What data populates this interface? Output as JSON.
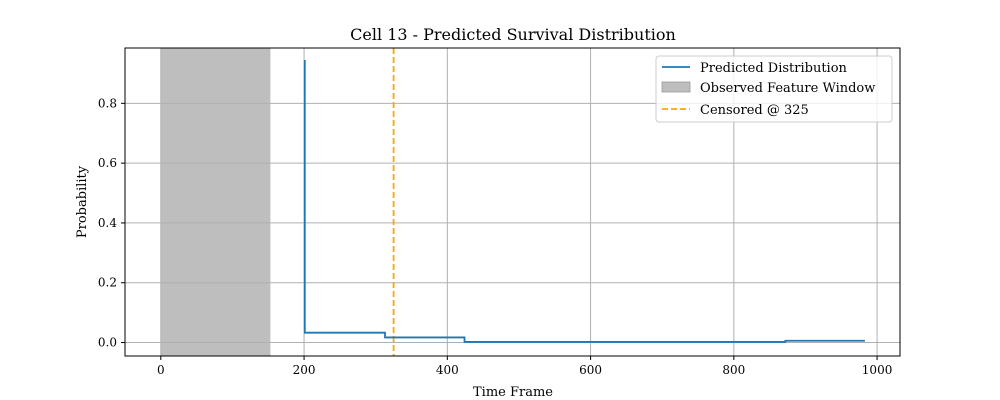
{
  "chart_data": {
    "type": "line",
    "title": "Cell 13 - Predicted Survival Distribution",
    "xlabel": "Time Frame",
    "ylabel": "Probability",
    "xlim": [
      -50,
      1032
    ],
    "ylim": [
      -0.045,
      0.985
    ],
    "xticks": [
      0,
      200,
      400,
      600,
      800,
      1000
    ],
    "yticks": [
      0.0,
      0.2,
      0.4,
      0.6,
      0.8
    ],
    "xtick_labels": [
      "0",
      "200",
      "400",
      "600",
      "800",
      "1000"
    ],
    "ytick_labels": [
      "0.0",
      "0.2",
      "0.4",
      "0.6",
      "0.8"
    ],
    "grid": true,
    "legend_position": "top-right",
    "series": [
      {
        "name": "Predicted Distribution",
        "color": "#1f77b4",
        "style": "steps-post",
        "x": [
          201,
          201,
          313,
          424,
          872,
          983
        ],
        "y": [
          0.945,
          0.033,
          0.017,
          0.002,
          0.006,
          0.006
        ]
      }
    ],
    "shaded_region": {
      "name": "Observed Feature Window",
      "x_start": 0,
      "x_end": 153,
      "color": "#bebebe"
    },
    "vertical_line": {
      "name": "Censored @ 325",
      "x": 325,
      "color": "#ffa500",
      "style": "dashed"
    }
  }
}
